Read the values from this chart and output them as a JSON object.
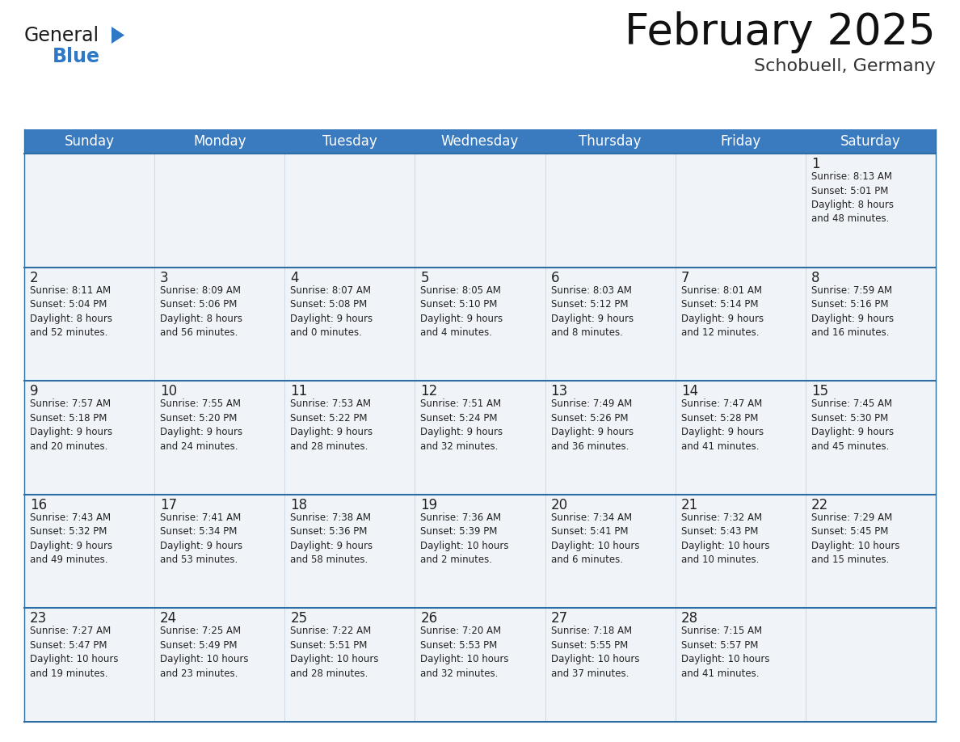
{
  "title": "February 2025",
  "subtitle": "Schobuell, Germany",
  "header_color": "#3a7abf",
  "header_text_color": "#ffffff",
  "day_names": [
    "Sunday",
    "Monday",
    "Tuesday",
    "Wednesday",
    "Thursday",
    "Friday",
    "Saturday"
  ],
  "title_fontsize": 38,
  "subtitle_fontsize": 16,
  "header_fontsize": 12,
  "cell_number_fontsize": 12,
  "cell_text_fontsize": 8.5,
  "background_color": "#ffffff",
  "cell_bg_color": "#f0f4f8",
  "divider_color": "#2e6da4",
  "border_color": "#2e6da4",
  "text_color": "#222222",
  "logo_general_color": "#1a1a1a",
  "logo_blue_color": "#2e78c8",
  "logo_triangle_color": "#2e78c8",
  "weeks": [
    [
      {
        "day": null,
        "info": null
      },
      {
        "day": null,
        "info": null
      },
      {
        "day": null,
        "info": null
      },
      {
        "day": null,
        "info": null
      },
      {
        "day": null,
        "info": null
      },
      {
        "day": null,
        "info": null
      },
      {
        "day": 1,
        "info": "Sunrise: 8:13 AM\nSunset: 5:01 PM\nDaylight: 8 hours\nand 48 minutes."
      }
    ],
    [
      {
        "day": 2,
        "info": "Sunrise: 8:11 AM\nSunset: 5:04 PM\nDaylight: 8 hours\nand 52 minutes."
      },
      {
        "day": 3,
        "info": "Sunrise: 8:09 AM\nSunset: 5:06 PM\nDaylight: 8 hours\nand 56 minutes."
      },
      {
        "day": 4,
        "info": "Sunrise: 8:07 AM\nSunset: 5:08 PM\nDaylight: 9 hours\nand 0 minutes."
      },
      {
        "day": 5,
        "info": "Sunrise: 8:05 AM\nSunset: 5:10 PM\nDaylight: 9 hours\nand 4 minutes."
      },
      {
        "day": 6,
        "info": "Sunrise: 8:03 AM\nSunset: 5:12 PM\nDaylight: 9 hours\nand 8 minutes."
      },
      {
        "day": 7,
        "info": "Sunrise: 8:01 AM\nSunset: 5:14 PM\nDaylight: 9 hours\nand 12 minutes."
      },
      {
        "day": 8,
        "info": "Sunrise: 7:59 AM\nSunset: 5:16 PM\nDaylight: 9 hours\nand 16 minutes."
      }
    ],
    [
      {
        "day": 9,
        "info": "Sunrise: 7:57 AM\nSunset: 5:18 PM\nDaylight: 9 hours\nand 20 minutes."
      },
      {
        "day": 10,
        "info": "Sunrise: 7:55 AM\nSunset: 5:20 PM\nDaylight: 9 hours\nand 24 minutes."
      },
      {
        "day": 11,
        "info": "Sunrise: 7:53 AM\nSunset: 5:22 PM\nDaylight: 9 hours\nand 28 minutes."
      },
      {
        "day": 12,
        "info": "Sunrise: 7:51 AM\nSunset: 5:24 PM\nDaylight: 9 hours\nand 32 minutes."
      },
      {
        "day": 13,
        "info": "Sunrise: 7:49 AM\nSunset: 5:26 PM\nDaylight: 9 hours\nand 36 minutes."
      },
      {
        "day": 14,
        "info": "Sunrise: 7:47 AM\nSunset: 5:28 PM\nDaylight: 9 hours\nand 41 minutes."
      },
      {
        "day": 15,
        "info": "Sunrise: 7:45 AM\nSunset: 5:30 PM\nDaylight: 9 hours\nand 45 minutes."
      }
    ],
    [
      {
        "day": 16,
        "info": "Sunrise: 7:43 AM\nSunset: 5:32 PM\nDaylight: 9 hours\nand 49 minutes."
      },
      {
        "day": 17,
        "info": "Sunrise: 7:41 AM\nSunset: 5:34 PM\nDaylight: 9 hours\nand 53 minutes."
      },
      {
        "day": 18,
        "info": "Sunrise: 7:38 AM\nSunset: 5:36 PM\nDaylight: 9 hours\nand 58 minutes."
      },
      {
        "day": 19,
        "info": "Sunrise: 7:36 AM\nSunset: 5:39 PM\nDaylight: 10 hours\nand 2 minutes."
      },
      {
        "day": 20,
        "info": "Sunrise: 7:34 AM\nSunset: 5:41 PM\nDaylight: 10 hours\nand 6 minutes."
      },
      {
        "day": 21,
        "info": "Sunrise: 7:32 AM\nSunset: 5:43 PM\nDaylight: 10 hours\nand 10 minutes."
      },
      {
        "day": 22,
        "info": "Sunrise: 7:29 AM\nSunset: 5:45 PM\nDaylight: 10 hours\nand 15 minutes."
      }
    ],
    [
      {
        "day": 23,
        "info": "Sunrise: 7:27 AM\nSunset: 5:47 PM\nDaylight: 10 hours\nand 19 minutes."
      },
      {
        "day": 24,
        "info": "Sunrise: 7:25 AM\nSunset: 5:49 PM\nDaylight: 10 hours\nand 23 minutes."
      },
      {
        "day": 25,
        "info": "Sunrise: 7:22 AM\nSunset: 5:51 PM\nDaylight: 10 hours\nand 28 minutes."
      },
      {
        "day": 26,
        "info": "Sunrise: 7:20 AM\nSunset: 5:53 PM\nDaylight: 10 hours\nand 32 minutes."
      },
      {
        "day": 27,
        "info": "Sunrise: 7:18 AM\nSunset: 5:55 PM\nDaylight: 10 hours\nand 37 minutes."
      },
      {
        "day": 28,
        "info": "Sunrise: 7:15 AM\nSunset: 5:57 PM\nDaylight: 10 hours\nand 41 minutes."
      },
      {
        "day": null,
        "info": null
      }
    ]
  ]
}
